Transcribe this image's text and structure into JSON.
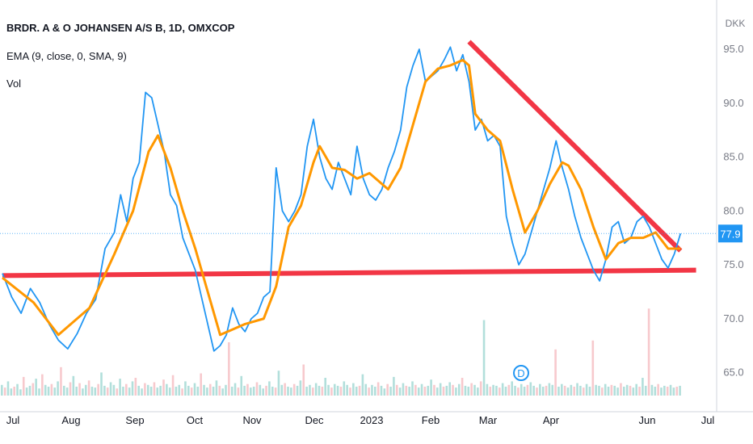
{
  "legend": {
    "title": "BRDR. A & O JOHANSEN A/S B, 1D, OMXCOP",
    "indicator": "EMA (9, close, 0, SMA, 9)",
    "volume": "Vol"
  },
  "colors": {
    "price_line": "#2196f3",
    "ema_line": "#ff9800",
    "trendline": "#f23645",
    "vol_up": "#b2dfdb",
    "vol_down": "#f7c9cd",
    "axis_text": "#787b86",
    "price_label_bg": "#2196f3"
  },
  "dividend_marker": "D",
  "chart_data": {
    "type": "line",
    "currency": "DKK",
    "ylim": [
      62.5,
      96.5
    ],
    "y_ticks": [
      "95.0",
      "90.0",
      "85.0",
      "80.0",
      "75.0",
      "70.0",
      "65.0"
    ],
    "x_ticks": [
      "Jul",
      "Aug",
      "Sep",
      "Oct",
      "Nov",
      "Dec",
      "2023",
      "Feb",
      "Mar",
      "Apr",
      "Jun",
      "Jul"
    ],
    "last_price_label": "77.9",
    "price": [
      [
        0,
        74.2
      ],
      [
        3,
        72.0
      ],
      [
        6,
        70.5
      ],
      [
        9,
        72.8
      ],
      [
        12,
        71.5
      ],
      [
        15,
        69.5
      ],
      [
        18,
        68.0
      ],
      [
        21,
        67.2
      ],
      [
        24,
        68.6
      ],
      [
        27,
        70.5
      ],
      [
        30,
        71.8
      ],
      [
        33,
        76.5
      ],
      [
        36,
        78.0
      ],
      [
        38,
        81.5
      ],
      [
        40,
        79.0
      ],
      [
        42,
        83.0
      ],
      [
        44,
        84.5
      ],
      [
        46,
        91.0
      ],
      [
        48,
        90.5
      ],
      [
        50,
        88.0
      ],
      [
        52,
        85.5
      ],
      [
        54,
        81.5
      ],
      [
        56,
        80.5
      ],
      [
        58,
        77.5
      ],
      [
        60,
        76.0
      ],
      [
        62,
        74.5
      ],
      [
        64,
        72.0
      ],
      [
        66,
        69.5
      ],
      [
        68,
        67.0
      ],
      [
        70,
        67.5
      ],
      [
        72,
        68.5
      ],
      [
        74,
        71.0
      ],
      [
        76,
        69.5
      ],
      [
        78,
        68.8
      ],
      [
        80,
        70.0
      ],
      [
        82,
        70.5
      ],
      [
        84,
        72.0
      ],
      [
        86,
        72.5
      ],
      [
        88,
        84.0
      ],
      [
        90,
        80.0
      ],
      [
        92,
        79.0
      ],
      [
        94,
        80.0
      ],
      [
        96,
        81.5
      ],
      [
        98,
        86.0
      ],
      [
        100,
        88.5
      ],
      [
        102,
        85.0
      ],
      [
        104,
        83.0
      ],
      [
        106,
        82.0
      ],
      [
        108,
        84.5
      ],
      [
        110,
        83.0
      ],
      [
        112,
        81.5
      ],
      [
        114,
        86.0
      ],
      [
        116,
        83.0
      ],
      [
        118,
        81.5
      ],
      [
        120,
        81.0
      ],
      [
        122,
        82.0
      ],
      [
        124,
        84.0
      ],
      [
        126,
        85.5
      ],
      [
        128,
        87.5
      ],
      [
        130,
        91.5
      ],
      [
        132,
        93.5
      ],
      [
        134,
        95.0
      ],
      [
        136,
        92.0
      ],
      [
        138,
        92.5
      ],
      [
        140,
        93.0
      ],
      [
        142,
        94.0
      ],
      [
        144,
        95.2
      ],
      [
        146,
        93.0
      ],
      [
        148,
        94.5
      ],
      [
        150,
        92.0
      ],
      [
        152,
        87.5
      ],
      [
        154,
        88.5
      ],
      [
        156,
        86.5
      ],
      [
        158,
        87.0
      ],
      [
        160,
        86.0
      ],
      [
        162,
        79.5
      ],
      [
        164,
        77.0
      ],
      [
        166,
        75.0
      ],
      [
        168,
        76.0
      ],
      [
        170,
        78.0
      ],
      [
        172,
        80.0
      ],
      [
        174,
        82.0
      ],
      [
        176,
        84.0
      ],
      [
        178,
        86.5
      ],
      [
        180,
        84.0
      ],
      [
        182,
        82.0
      ],
      [
        184,
        79.5
      ],
      [
        186,
        77.5
      ],
      [
        188,
        76.0
      ],
      [
        190,
        74.5
      ],
      [
        192,
        73.5
      ],
      [
        194,
        75.5
      ],
      [
        196,
        78.5
      ],
      [
        198,
        79.0
      ],
      [
        200,
        77.0
      ],
      [
        202,
        77.5
      ],
      [
        204,
        79.0
      ],
      [
        206,
        79.5
      ],
      [
        208,
        78.5
      ],
      [
        210,
        77.0
      ],
      [
        212,
        75.5
      ],
      [
        214,
        74.7
      ],
      [
        216,
        76.0
      ],
      [
        218,
        77.9
      ]
    ],
    "ema": [
      [
        0,
        73.8
      ],
      [
        10,
        71.5
      ],
      [
        18,
        68.5
      ],
      [
        28,
        71.0
      ],
      [
        36,
        76.0
      ],
      [
        42,
        80.0
      ],
      [
        47,
        85.5
      ],
      [
        50,
        87.0
      ],
      [
        54,
        84.0
      ],
      [
        58,
        80.0
      ],
      [
        62,
        76.5
      ],
      [
        66,
        72.5
      ],
      [
        70,
        68.5
      ],
      [
        74,
        69.0
      ],
      [
        78,
        69.5
      ],
      [
        84,
        70.0
      ],
      [
        88,
        73.0
      ],
      [
        92,
        78.5
      ],
      [
        96,
        80.5
      ],
      [
        100,
        84.5
      ],
      [
        102,
        86.0
      ],
      [
        106,
        84.0
      ],
      [
        110,
        83.8
      ],
      [
        114,
        83.0
      ],
      [
        118,
        83.5
      ],
      [
        124,
        82.0
      ],
      [
        128,
        84.0
      ],
      [
        132,
        88.0
      ],
      [
        136,
        92.0
      ],
      [
        140,
        93.2
      ],
      [
        144,
        93.5
      ],
      [
        148,
        94.0
      ],
      [
        150,
        93.5
      ],
      [
        152,
        89.0
      ],
      [
        156,
        87.5
      ],
      [
        160,
        86.5
      ],
      [
        164,
        82.0
      ],
      [
        168,
        78.0
      ],
      [
        172,
        80.0
      ],
      [
        176,
        82.5
      ],
      [
        180,
        84.5
      ],
      [
        182,
        84.2
      ],
      [
        186,
        82.0
      ],
      [
        190,
        78.5
      ],
      [
        194,
        75.5
      ],
      [
        198,
        77.0
      ],
      [
        202,
        77.5
      ],
      [
        206,
        77.5
      ],
      [
        210,
        78.0
      ],
      [
        214,
        76.5
      ],
      [
        218,
        76.5
      ]
    ],
    "volume": [
      1.2,
      0.9,
      1.6,
      0.8,
      1.0,
      1.3,
      0.7,
      2.1,
      0.9,
      1.1,
      1.4,
      1.9,
      0.8,
      2.4,
      1.2,
      1.0,
      1.3,
      0.9,
      1.6,
      3.2,
      1.1,
      0.9,
      1.5,
      2.2,
      1.0,
      1.4,
      0.8,
      1.2,
      1.7,
      1.0,
      0.9,
      1.3,
      2.6,
      1.1,
      0.9,
      1.5,
      1.2,
      0.8,
      1.9,
      1.0,
      1.3,
      0.9,
      1.6,
      2.0,
      1.1,
      0.8,
      1.4,
      1.2,
      1.0,
      1.5,
      0.9,
      1.1,
      1.8,
      1.3,
      0.9,
      2.3,
      1.0,
      1.2,
      0.8,
      1.6,
      1.1,
      0.9,
      1.4,
      1.0,
      2.5,
      1.2,
      0.9,
      1.3,
      1.0,
      1.7,
      1.1,
      0.8,
      1.2,
      6.0,
      1.0,
      1.4,
      0.9,
      2.2,
      1.1,
      1.3,
      0.9,
      1.0,
      1.5,
      1.2,
      0.8,
      1.1,
      1.6,
      1.0,
      0.9,
      2.8,
      1.2,
      1.4,
      1.0,
      0.9,
      1.3,
      1.1,
      1.7,
      3.5,
      1.0,
      1.2,
      0.9,
      1.4,
      1.1,
      1.0,
      2.0,
      1.2,
      0.9,
      1.3,
      1.1,
      1.0,
      1.6,
      1.2,
      0.9,
      1.4,
      1.0,
      1.1,
      2.4,
      1.3,
      0.9,
      1.2,
      1.0,
      1.5,
      1.1,
      0.8,
      1.3,
      1.0,
      2.1,
      1.2,
      0.9,
      1.4,
      1.1,
      1.0,
      1.6,
      1.2,
      0.9,
      1.3,
      1.0,
      1.1,
      1.8,
      1.2,
      0.9,
      1.4,
      1.0,
      1.1,
      1.5,
      1.2,
      0.9,
      1.3,
      2.0,
      1.1,
      1.0,
      1.4,
      1.2,
      0.9,
      1.6,
      8.5,
      1.3,
      1.0,
      1.2,
      1.1,
      0.9,
      1.4,
      1.0,
      1.2,
      1.6,
      1.1,
      0.9,
      1.3,
      1.0,
      1.2,
      1.5,
      1.1,
      0.9,
      1.3,
      1.0,
      1.1,
      1.4,
      1.2,
      5.2,
      1.0,
      1.3,
      1.1,
      0.9,
      1.2,
      1.0,
      1.4,
      1.1,
      0.9,
      1.3,
      1.0,
      6.2,
      1.2,
      1.1,
      0.9,
      1.3,
      1.0,
      1.2,
      1.1,
      0.9,
      1.4,
      1.0,
      1.2,
      1.1,
      0.9,
      1.3,
      1.0,
      2.0,
      1.1,
      9.8,
      1.2,
      1.0,
      1.3,
      0.9,
      1.1,
      1.0,
      1.2,
      0.9,
      1.0,
      1.1
    ],
    "trendlines": [
      {
        "from": [
          0,
          74.0
        ],
        "to": [
          223,
          74.5
        ]
      },
      {
        "from": [
          150,
          95.7
        ],
        "to": [
          218,
          76.3
        ]
      }
    ]
  }
}
